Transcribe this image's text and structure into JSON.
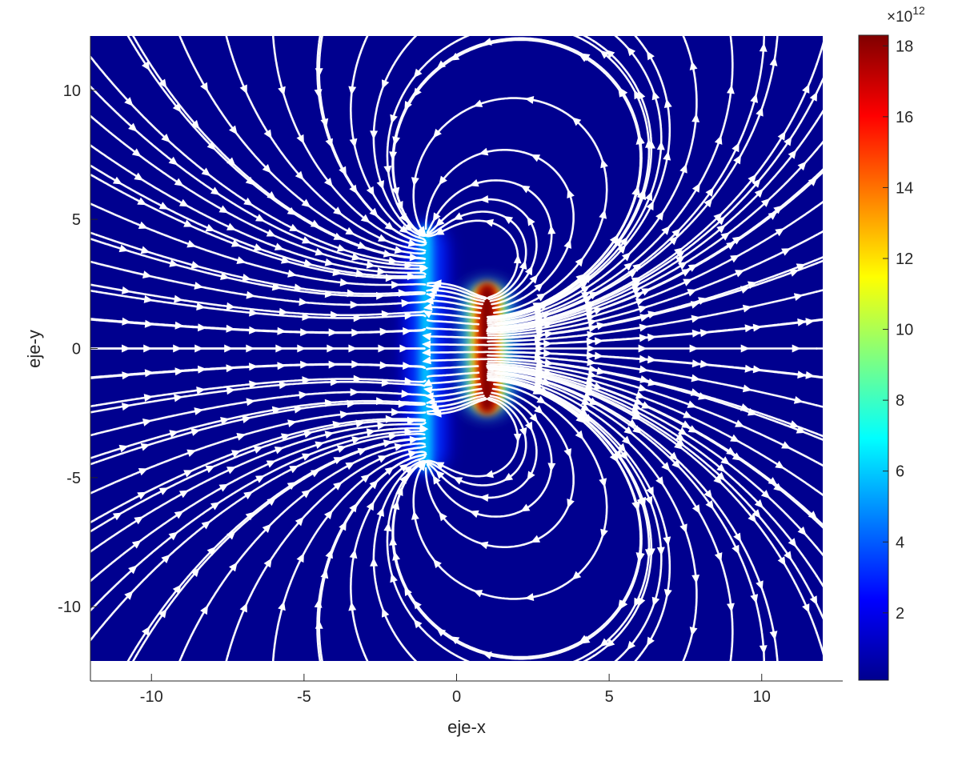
{
  "chart_data": {
    "type": "heatmap",
    "subtype": "electric-field-streamlines",
    "title": "",
    "xlabel": "eje-x",
    "ylabel": "eje-y",
    "xlim": [
      -12,
      12
    ],
    "ylim": [
      -12.1,
      12.1
    ],
    "xticks": [
      -10,
      -5,
      0,
      5,
      10
    ],
    "yticks": [
      -10,
      -5,
      0,
      5,
      10
    ],
    "xtick_labels": [
      "-10",
      "-5",
      "0",
      "5",
      "10"
    ],
    "ytick_labels": [
      "-10",
      "-5",
      "0",
      "5",
      "10"
    ],
    "grid": false,
    "colormap": "jet",
    "background_color": "#00008f",
    "streamline_color": "#ffffff",
    "colorbar": {
      "placement": "right",
      "range": [
        0.1,
        18.3
      ],
      "ticks": [
        2,
        4,
        6,
        8,
        10,
        12,
        14,
        16,
        18
      ],
      "tick_labels": [
        "2",
        "4",
        "6",
        "8",
        "10",
        "12",
        "14",
        "16",
        "18"
      ],
      "exponent_base": "×10",
      "exponent_power": "12"
    },
    "sources": [
      {
        "role": "plate-left",
        "x": -1.0,
        "y_range": [
          -4.6,
          4.6
        ],
        "peak_field": 6.0
      },
      {
        "role": "plate-right",
        "x": 1.0,
        "y_range": [
          -2.3,
          2.3
        ],
        "peak_field": 18.3
      }
    ]
  }
}
